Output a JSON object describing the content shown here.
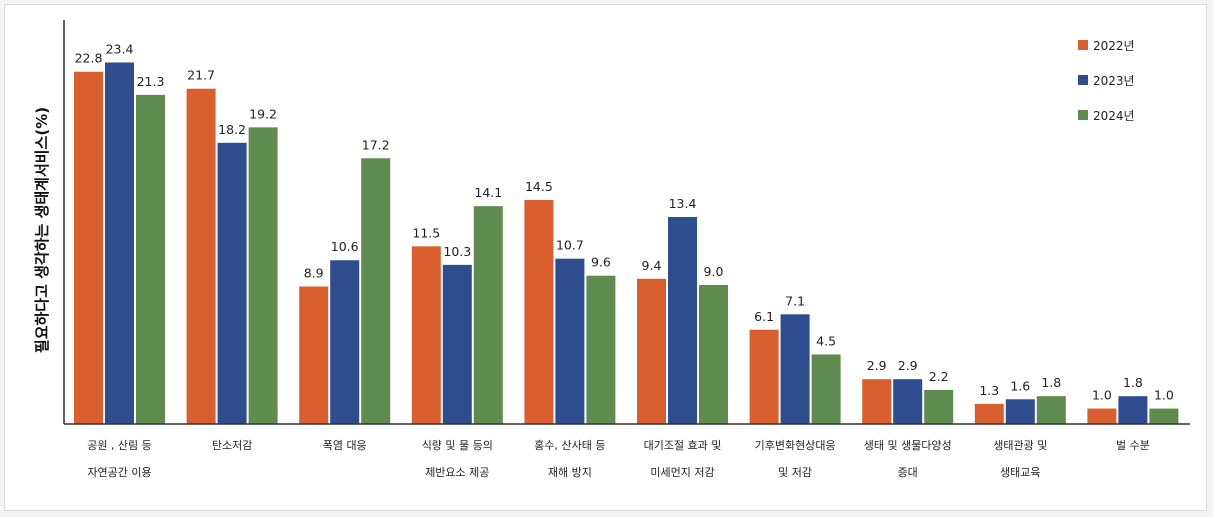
{
  "chart_data": {
    "type": "bar",
    "ylabel": "필요하다고 생각하는 생태계서비스(%)",
    "ylim": [
      0,
      26
    ],
    "grid": false,
    "legend_position": "top-right",
    "categories": [
      [
        "공원 , 산림 등",
        "자연공간 이용"
      ],
      [
        "탄소저감"
      ],
      [
        "폭염 대응"
      ],
      [
        "식량 및 물 등의",
        "제반요소 제공"
      ],
      [
        "홍수, 산사태 등",
        "재해 방지"
      ],
      [
        "대기조절 효과 및",
        "미세먼지 저감"
      ],
      [
        "기후변화현상대응",
        "및 저감"
      ],
      [
        "생태 및 생물다양성",
        "증대"
      ],
      [
        "생태관광 및",
        "생태교육"
      ],
      [
        "벌 수분"
      ]
    ],
    "series": [
      {
        "name": "2022년",
        "color": "#d9602e",
        "values": [
          22.8,
          21.7,
          8.9,
          11.5,
          14.5,
          9.4,
          6.1,
          2.9,
          1.3,
          1.0
        ]
      },
      {
        "name": "2023년",
        "color": "#2e4d8f",
        "values": [
          23.4,
          18.2,
          10.6,
          10.3,
          10.7,
          13.4,
          7.1,
          2.9,
          1.6,
          1.8
        ]
      },
      {
        "name": "2024년",
        "color": "#5e8c4e",
        "values": [
          21.3,
          19.2,
          17.2,
          14.1,
          9.6,
          9.0,
          4.5,
          2.2,
          1.8,
          1.0
        ]
      }
    ]
  }
}
